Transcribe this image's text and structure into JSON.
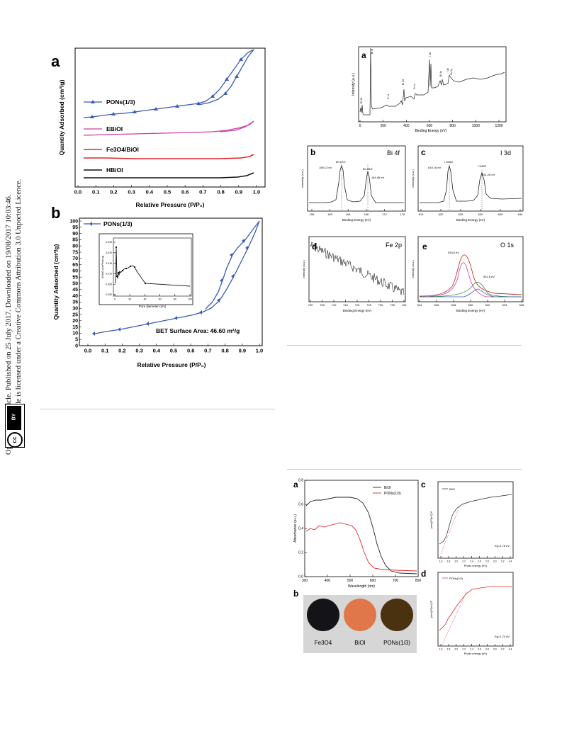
{
  "sidebar": {
    "line1": "Open Access Article. Published on 25 July 2017. Downloaded on 19/08/2017 10:03:46.",
    "line2": "This article is licensed under a Creative Commons Attribution 3.0 Unported Licence.",
    "badge_cc": "cc",
    "badge_by": "BY"
  },
  "fig_bet": {
    "panel_a": {
      "label": "a",
      "ylabel": "Quantity Adsorbed (cm³/g)",
      "xlabel": "Relative Pressure (P/P₀)",
      "x_ticks": [
        "0.0",
        "0.1",
        "0.2",
        "0.3",
        "0.4",
        "0.5",
        "0.6",
        "0.7",
        "0.8",
        "0.9",
        "1.0"
      ],
      "legend": [
        "PONs(1/3)",
        "EBiOI",
        "Fe3O4/BiOI",
        "HBiOI"
      ]
    },
    "panel_b": {
      "label": "b",
      "ylabel": "Quantity Adsorbed (cm³/g)",
      "xlabel": "Relative Pressure (P/P₀)",
      "legend": "PONs(1/3)",
      "surface_area": "BET Surface Area: 46.60 m²/g",
      "x_ticks": [
        "0.0",
        "0.1",
        "0.2",
        "0.3",
        "0.4",
        "0.5",
        "0.6",
        "0.7",
        "0.8",
        "0.9",
        "1.0"
      ],
      "y_ticks": [
        "0",
        "5",
        "10",
        "15",
        "20",
        "25",
        "30",
        "35",
        "40",
        "45",
        "50",
        "55",
        "60",
        "65",
        "70",
        "75",
        "80",
        "85",
        "90",
        "95",
        "100"
      ],
      "inset_xlabel": "Pore diameter (nm)",
      "inset_ylabel": "dV/dD (cm³/nm·g)",
      "inset_y_ticks": [
        "0.000",
        "0.005",
        "0.010",
        "0.015",
        "0.020",
        "0.025"
      ],
      "inset_x_ticks": [
        "0",
        "20",
        "40",
        "60",
        "80",
        "100"
      ]
    }
  },
  "fig_xps": {
    "panel_a": {
      "label": "a",
      "ylabel": "Intensity (a.u.)",
      "xlabel": "Binding Energy (eV)",
      "x_ticks": [
        "0",
        "200",
        "400",
        "600",
        "800",
        "1000",
        "1200"
      ],
      "peaks": [
        "Bi 5d",
        "Bi 4f",
        "C 1s",
        "Bi 4d",
        "O 1s",
        "I 3d",
        "Bi 4p",
        "I 3p",
        "Fe 2p"
      ]
    },
    "panel_b": {
      "label": "b",
      "title": "Bi 4f",
      "ylabel": "Intensity (a.u.)",
      "xlabel": "Binding Energy (eV)",
      "x_ticks": [
        "156",
        "160",
        "164",
        "168",
        "172",
        "176"
      ],
      "peak1": "Bi 4f7/2",
      "peak1_val": "159.13 eV",
      "peak2": "Bi 4f5/2",
      "peak2_val": "164.46 eV"
    },
    "panel_c": {
      "label": "c",
      "title": "I 3d",
      "ylabel": "Intensity (a.u.)",
      "xlabel": "Binding Energy (eV)",
      "x_ticks": [
        "615",
        "620",
        "625",
        "630",
        "635",
        "640"
      ],
      "peak1": "I 3d5/2",
      "peak1_val": "619.78 eV",
      "peak2": "I 3d3/2",
      "peak2_val": "631.28 eV"
    },
    "panel_d": {
      "label": "d",
      "title": "Fe 2p",
      "ylabel": "Intensity (a.u.)",
      "xlabel": "Binding Energy (eV)",
      "x_ticks": [
        "700",
        "705",
        "710",
        "715",
        "720",
        "725",
        "730",
        "735",
        "740"
      ]
    },
    "panel_e": {
      "label": "e",
      "title": "O 1s",
      "ylabel": "Intensity (a.u.)",
      "xlabel": "Binding Energy (eV)",
      "x_ticks": [
        "524",
        "526",
        "528",
        "530",
        "532",
        "534",
        "536"
      ],
      "peak1_val": "530.6 eV",
      "peak2_val": "531.8 eV"
    }
  },
  "fig_uv": {
    "panel_a": {
      "label": "a",
      "ylabel": "Absorbance (a.u.)",
      "xlabel": "Wavelength (nm)",
      "x_ticks": [
        "300",
        "400",
        "500",
        "600",
        "700",
        "800"
      ],
      "y_ticks": [
        "0.0",
        "0.2",
        "0.4",
        "0.6",
        "0.8"
      ],
      "legend": [
        "BiOI",
        "PONs(1/3)"
      ]
    },
    "panel_b": {
      "label": "b",
      "samples": [
        "Fe3O4",
        "BiOI",
        "PONs(1/3)"
      ]
    },
    "panel_c": {
      "label": "c",
      "legend": "BiOI",
      "eg": "Eg=1.78 eV",
      "xlabel": "Photo energy (eV)",
      "ylabel": "(αhν)¹/²(eV)¹/²",
      "x_ticks": [
        "1.6",
        "1.8",
        "2.0",
        "2.2",
        "2.4",
        "2.6",
        "2.8",
        "3.0",
        "3.2",
        "3.4"
      ]
    },
    "panel_d": {
      "label": "d",
      "legend": "PONs(1/3)",
      "eg": "Eg=1.70 eV",
      "xlabel": "Photo energy (eV)",
      "ylabel": "(αhν)¹/²(eV)¹/²",
      "x_ticks": [
        "1.6",
        "1.8",
        "2.0",
        "2.2",
        "2.4",
        "2.6",
        "2.8",
        "3.0",
        "3.2",
        "3.4"
      ]
    }
  },
  "colors": {
    "blue": "#3b5bb5",
    "magenta": "#cc3fa8",
    "red": "#e0262a",
    "black": "#111111",
    "rule": "#cfc9c0"
  }
}
